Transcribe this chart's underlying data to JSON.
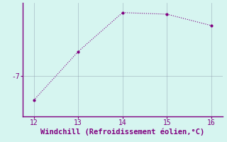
{
  "x": [
    12,
    13,
    14,
    15,
    16
  ],
  "y": [
    -8.5,
    -5.5,
    -3.1,
    -3.2,
    -3.9
  ],
  "xlabel": "Windchill (Refroidissement éolien,°C)",
  "ylim": [
    -9.5,
    -2.5
  ],
  "xlim": [
    11.75,
    16.25
  ],
  "xticks": [
    12,
    13,
    14,
    15,
    16
  ],
  "yticks": [
    -7
  ],
  "ytick_labels": [
    "-7"
  ],
  "line_color": "#800080",
  "marker": ".",
  "marker_size": 4,
  "background_color": "#d6f5f0",
  "grid_color": "#8899aa",
  "spine_color": "#800080",
  "label_color": "#800080",
  "xlabel_fontsize": 7.5,
  "tick_fontsize": 7
}
